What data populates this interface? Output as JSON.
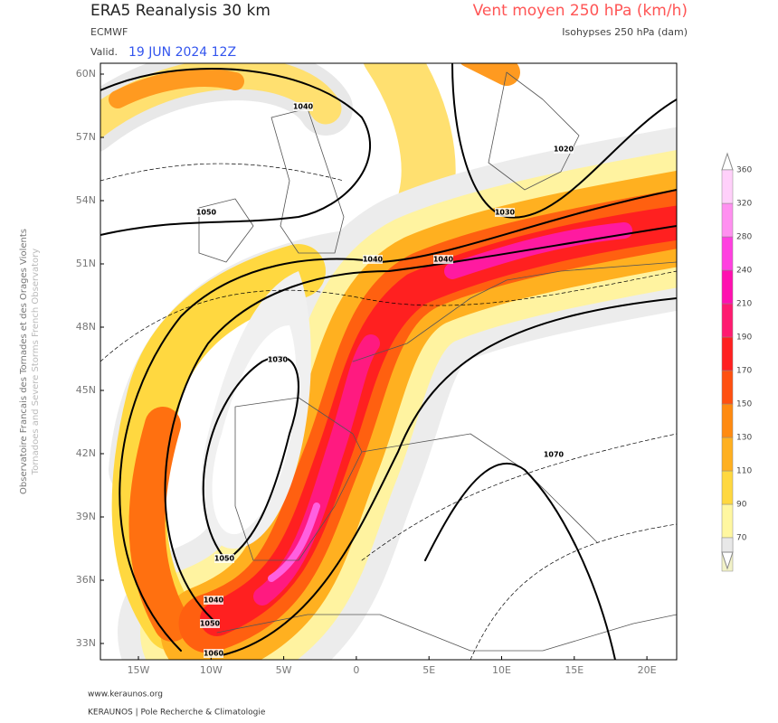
{
  "header": {
    "title": "ERA5 Reanalysis 30 km",
    "source": "ECMWF",
    "valid_label": "Valid.",
    "valid_date": "19 JUN 2024 12Z",
    "parameter": "Vent moyen 250 hPa (km/h)",
    "contours": "Isohypses 250 hPa (dam)"
  },
  "side_text": {
    "french": "Observatoire Francais des Tornades et des Orages Violents",
    "english": "Tornadoes and Severe Storms French Observatory"
  },
  "map": {
    "lat_labels": [
      "60N",
      "57N",
      "54N",
      "51N",
      "48N",
      "45N",
      "42N",
      "39N",
      "36N",
      "33N"
    ],
    "lon_labels": [
      "15W",
      "10W",
      "5W",
      "0",
      "5E",
      "10E",
      "15E",
      "20E"
    ],
    "contour_labels": [
      "1040",
      "1020",
      "1050",
      "1030",
      "1040",
      "1040",
      "1030",
      "1070",
      "1050",
      "1040",
      "1050",
      "1060"
    ]
  },
  "colorbar": {
    "levels": [
      70,
      90,
      110,
      130,
      150,
      170,
      190,
      210,
      240,
      280,
      320,
      360
    ],
    "colors": [
      "#f2f2c8",
      "#fff7a0",
      "#ffd840",
      "#ffb020",
      "#ff8a10",
      "#ff5010",
      "#ff2020",
      "#ff1a70",
      "#ff10b0",
      "#ff40e0",
      "#ff90f0",
      "#ffd0fa"
    ]
  },
  "footer": {
    "url": "www.keraunos.org",
    "credit": "KERAUNOS | Pole Recherche & Climatologie"
  }
}
